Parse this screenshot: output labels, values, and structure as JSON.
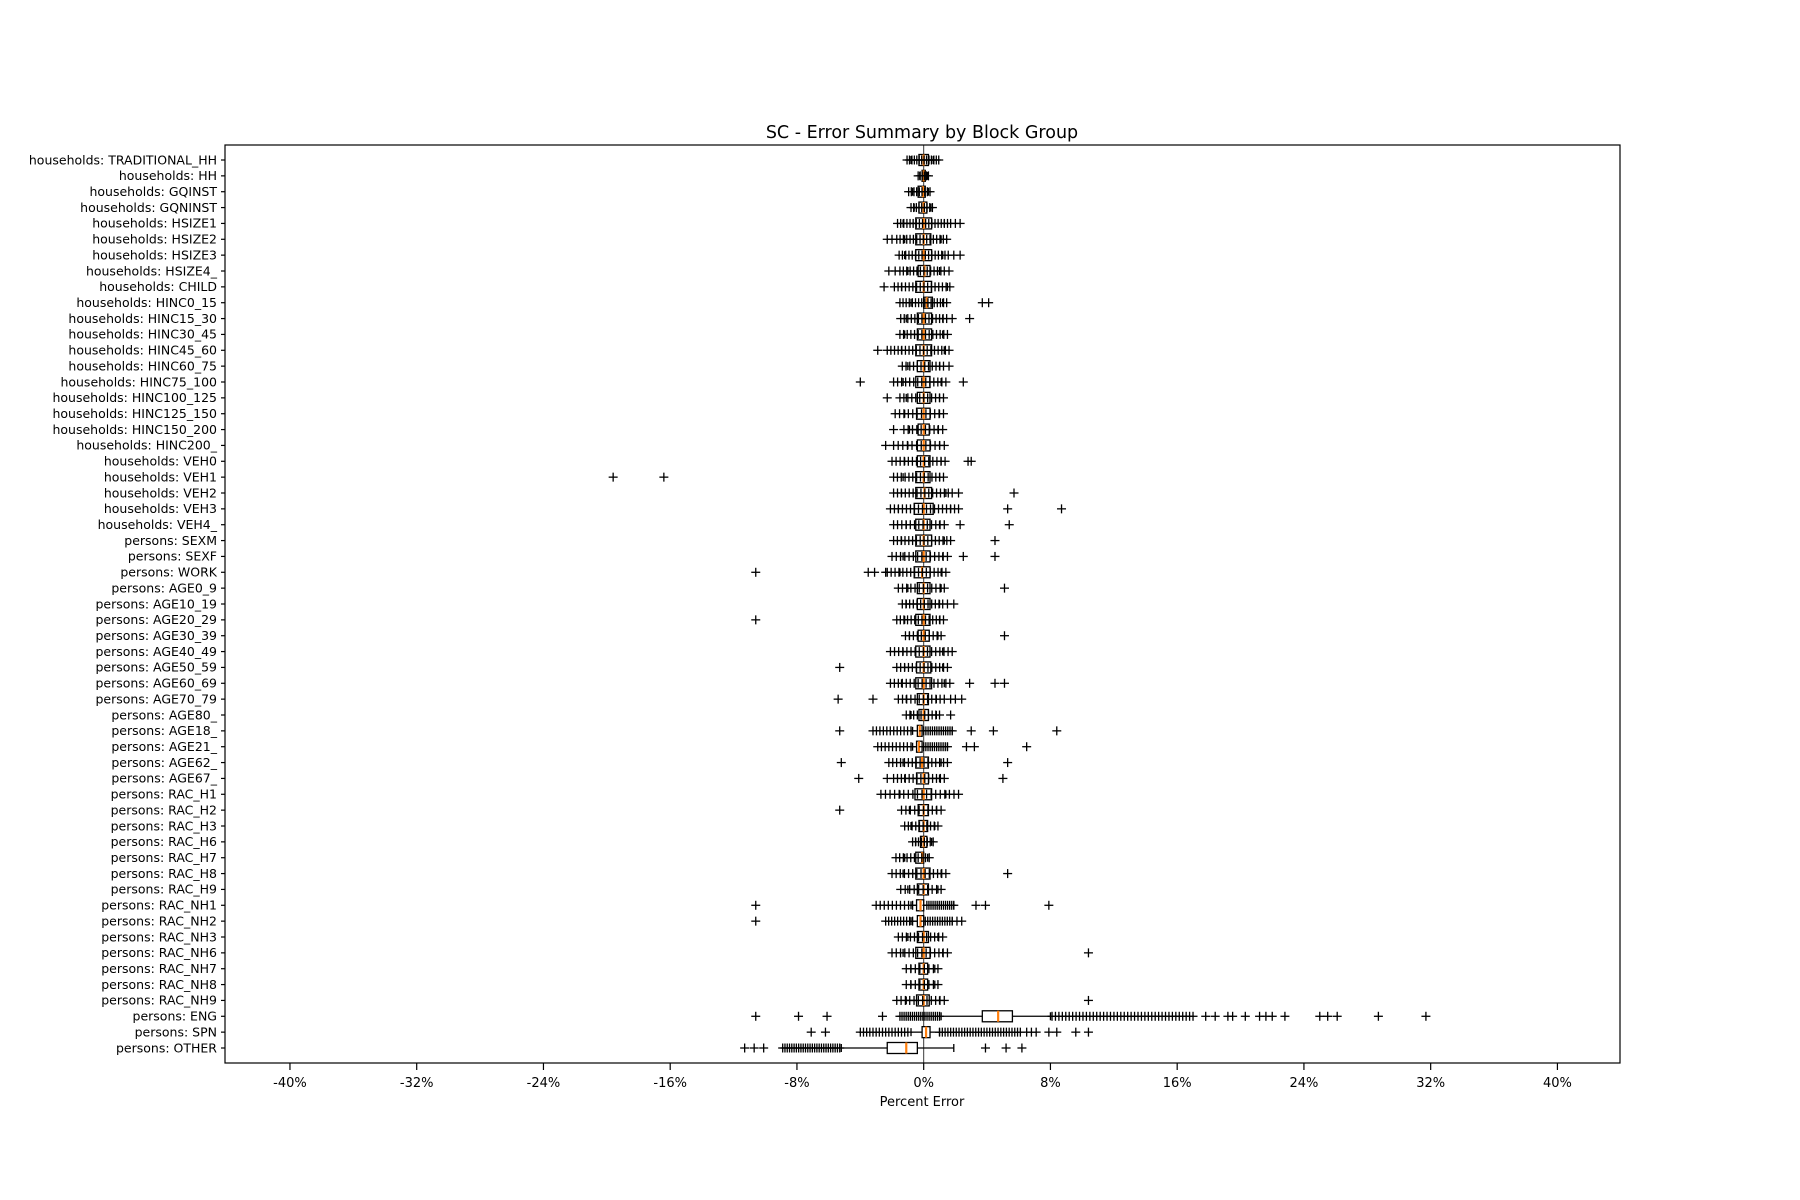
{
  "chart_data": {
    "type": "boxplot-horizontal",
    "title": "SC - Error Summary by Block Group",
    "xlabel": "Percent Error",
    "x_ticks": [
      -40,
      -32,
      -24,
      -16,
      -8,
      0,
      8,
      16,
      24,
      32,
      40
    ],
    "x_tick_labels": [
      "-40%",
      "-32%",
      "-24%",
      "-16%",
      "-8%",
      "0%",
      "8%",
      "16%",
      "24%",
      "32%",
      "40%"
    ],
    "xlim": [
      -44.1,
      43.95
    ],
    "grid": false,
    "zero_line": true,
    "colors": {
      "box": "#000000",
      "median": "#ff7f0e",
      "flier": "#000000",
      "spine": "#000000",
      "zero_line": "#3a3a3a",
      "background": "#ffffff"
    },
    "rows": [
      {
        "label": "households: TRADITIONAL_HH",
        "wlo": -0.8,
        "q1": -0.3,
        "med": 0.0,
        "q3": 0.3,
        "whi": 0.6,
        "clusters": [
          [
            -1.05,
            0.95,
            14
          ]
        ],
        "fliers": []
      },
      {
        "label": "households: HH",
        "wlo": -0.25,
        "q1": -0.1,
        "med": 0.0,
        "q3": 0.1,
        "whi": 0.25,
        "clusters": [
          [
            -0.35,
            0.3,
            6
          ]
        ],
        "fliers": []
      },
      {
        "label": "households: GQINST",
        "wlo": -0.7,
        "q1": -0.35,
        "med": -0.05,
        "q3": 0.1,
        "whi": 0.3,
        "clusters": [
          [
            -0.95,
            0.4,
            9
          ]
        ],
        "fliers": []
      },
      {
        "label": "households: GQNINST",
        "wlo": -0.6,
        "q1": -0.3,
        "med": 0.0,
        "q3": 0.2,
        "whi": 0.45,
        "clusters": [
          [
            -0.8,
            0.55,
            9
          ]
        ],
        "fliers": []
      },
      {
        "label": "households: HSIZE1",
        "wlo": -1.3,
        "q1": -0.5,
        "med": 0.0,
        "q3": 0.5,
        "whi": 1.3,
        "clusters": [
          [
            -1.65,
            1.7,
            18
          ]
        ],
        "fliers": [
          2.0,
          2.3
        ]
      },
      {
        "label": "households: HSIZE2",
        "wlo": -1.2,
        "q1": -0.5,
        "med": 0.0,
        "q3": 0.45,
        "whi": 1.1,
        "clusters": [
          [
            -1.7,
            1.45,
            16
          ]
        ],
        "fliers": [
          -2.3,
          -2.0
        ]
      },
      {
        "label": "households: HSIZE3",
        "wlo": -1.2,
        "q1": -0.5,
        "med": 0.0,
        "q3": 0.5,
        "whi": 1.2,
        "clusters": [
          [
            -1.55,
            1.55,
            16
          ]
        ],
        "fliers": [
          1.9,
          2.3
        ]
      },
      {
        "label": "households: HSIZE4_",
        "wlo": -1.0,
        "q1": -0.35,
        "med": 0.05,
        "q3": 0.4,
        "whi": 1.0,
        "clusters": [
          [
            -1.5,
            1.3,
            14
          ]
        ],
        "fliers": [
          -2.2,
          -1.8,
          1.6
        ]
      },
      {
        "label": "households: CHILD",
        "wlo": -1.4,
        "q1": -0.5,
        "med": 0.0,
        "q3": 0.5,
        "whi": 1.5,
        "clusters": [
          [
            -1.85,
            1.65,
            16
          ]
        ],
        "fliers": [
          -2.5
        ]
      },
      {
        "label": "households: HINC0_15",
        "wlo": -0.8,
        "q1": 0.0,
        "med": 0.2,
        "q3": 0.55,
        "whi": 1.2,
        "clusters": [
          [
            -1.5,
            1.45,
            16
          ]
        ],
        "fliers": [
          3.7,
          4.1
        ]
      },
      {
        "label": "households: HINC15_30",
        "wlo": -1.1,
        "q1": -0.4,
        "med": 0.0,
        "q3": 0.5,
        "whi": 1.2,
        "clusters": [
          [
            -1.45,
            1.45,
            14
          ]
        ],
        "fliers": [
          1.8,
          2.9
        ]
      },
      {
        "label": "households: HINC30_45",
        "wlo": -1.2,
        "q1": -0.4,
        "med": 0.0,
        "q3": 0.5,
        "whi": 1.2,
        "clusters": [
          [
            -1.5,
            1.5,
            14
          ]
        ],
        "fliers": []
      },
      {
        "label": "households: HINC45_60",
        "wlo": -1.4,
        "q1": -0.5,
        "med": 0.0,
        "q3": 0.5,
        "whi": 1.3,
        "clusters": [
          [
            -2.3,
            1.6,
            18
          ]
        ],
        "fliers": [
          -2.9
        ]
      },
      {
        "label": "households: HINC60_75",
        "wlo": -1.0,
        "q1": -0.4,
        "med": 0.0,
        "q3": 0.4,
        "whi": 1.0,
        "clusters": [
          [
            -1.35,
            1.25,
            12
          ]
        ],
        "fliers": [
          1.6
        ]
      },
      {
        "label": "households: HINC75_100",
        "wlo": -1.3,
        "q1": -0.5,
        "med": 0.0,
        "q3": 0.4,
        "whi": 1.1,
        "clusters": [
          [
            -1.9,
            1.4,
            14
          ]
        ],
        "fliers": [
          -4.0,
          2.5
        ]
      },
      {
        "label": "households: HINC100_125",
        "wlo": -1.1,
        "q1": -0.4,
        "med": 0.0,
        "q3": 0.4,
        "whi": 1.0,
        "clusters": [
          [
            -1.5,
            1.25,
            12
          ]
        ],
        "fliers": [
          -2.3
        ]
      },
      {
        "label": "households: HINC125_150",
        "wlo": -1.2,
        "q1": -0.45,
        "med": 0.0,
        "q3": 0.4,
        "whi": 1.0,
        "clusters": [
          [
            -1.8,
            1.25,
            12
          ]
        ],
        "fliers": []
      },
      {
        "label": "households: HINC150_200",
        "wlo": -0.9,
        "q1": -0.35,
        "med": 0.0,
        "q3": 0.35,
        "whi": 0.9,
        "clusters": [
          [
            -1.25,
            1.2,
            10
          ]
        ],
        "fliers": [
          -1.9
        ]
      },
      {
        "label": "households: HINC200_",
        "wlo": -1.0,
        "q1": -0.4,
        "med": 0.0,
        "q3": 0.4,
        "whi": 1.0,
        "clusters": [
          [
            -1.9,
            1.3,
            12
          ]
        ],
        "fliers": [
          -2.4
        ]
      },
      {
        "label": "households: VEH0",
        "wlo": -1.2,
        "q1": -0.4,
        "med": 0.0,
        "q3": 0.4,
        "whi": 1.1,
        "clusters": [
          [
            -2.0,
            1.35,
            14
          ]
        ],
        "fliers": [
          2.8,
          3.0
        ]
      },
      {
        "label": "households: VEH1",
        "wlo": -1.3,
        "q1": -0.5,
        "med": 0.0,
        "q3": 0.4,
        "whi": 1.0,
        "clusters": [
          [
            -1.9,
            1.25,
            14
          ]
        ],
        "fliers": [
          -19.6,
          -16.4
        ]
      },
      {
        "label": "households: VEH2",
        "wlo": -1.4,
        "q1": -0.5,
        "med": 0.05,
        "q3": 0.5,
        "whi": 1.4,
        "clusters": [
          [
            -1.9,
            1.8,
            16
          ]
        ],
        "fliers": [
          2.2,
          5.7
        ]
      },
      {
        "label": "households: VEH3",
        "wlo": -1.6,
        "q1": -0.6,
        "med": 0.0,
        "q3": 0.6,
        "whi": 1.7,
        "clusters": [
          [
            -2.1,
            2.2,
            18
          ]
        ],
        "fliers": [
          5.3,
          8.7
        ]
      },
      {
        "label": "households: VEH4_",
        "wlo": -1.1,
        "q1": -0.5,
        "med": 0.0,
        "q3": 0.4,
        "whi": 1.0,
        "clusters": [
          [
            -1.65,
            1.3,
            12
          ]
        ],
        "fliers": [
          -1.9,
          2.3,
          5.4
        ]
      },
      {
        "label": "persons: SEXM",
        "wlo": -1.4,
        "q1": -0.5,
        "med": 0.0,
        "q3": 0.5,
        "whi": 1.3,
        "clusters": [
          [
            -1.9,
            1.7,
            16
          ]
        ],
        "fliers": [
          4.5
        ]
      },
      {
        "label": "persons: SEXF",
        "wlo": -1.3,
        "q1": -0.5,
        "med": 0.0,
        "q3": 0.4,
        "whi": 1.2,
        "clusters": [
          [
            -2.0,
            1.5,
            14
          ]
        ],
        "fliers": [
          2.5,
          4.5
        ]
      },
      {
        "label": "persons: WORK",
        "wlo": -1.5,
        "q1": -0.6,
        "med": -0.1,
        "q3": 0.4,
        "whi": 1.1,
        "clusters": [
          [
            -2.3,
            1.4,
            16
          ]
        ],
        "fliers": [
          -10.6,
          -3.5,
          -3.1,
          -2.4
        ]
      },
      {
        "label": "persons: AGE0_9",
        "wlo": -1.0,
        "q1": -0.4,
        "med": 0.0,
        "q3": 0.4,
        "whi": 1.1,
        "clusters": [
          [
            -1.6,
            1.3,
            12
          ]
        ],
        "fliers": [
          5.1
        ]
      },
      {
        "label": "persons: AGE10_19",
        "wlo": -1.1,
        "q1": -0.4,
        "med": 0.0,
        "q3": 0.4,
        "whi": 1.0,
        "clusters": [
          [
            -1.35,
            1.2,
            12
          ]
        ],
        "fliers": [
          1.5,
          1.9
        ]
      },
      {
        "label": "persons: AGE20_29",
        "wlo": -1.2,
        "q1": -0.5,
        "med": 0.0,
        "q3": 0.4,
        "whi": 1.0,
        "clusters": [
          [
            -1.7,
            1.25,
            14
          ]
        ],
        "fliers": [
          -10.6
        ]
      },
      {
        "label": "persons: AGE30_39",
        "wlo": -0.9,
        "q1": -0.35,
        "med": 0.0,
        "q3": 0.35,
        "whi": 0.9,
        "clusters": [
          [
            -1.15,
            1.1,
            10
          ]
        ],
        "fliers": [
          5.1
        ]
      },
      {
        "label": "persons: AGE40_49",
        "wlo": -1.3,
        "q1": -0.5,
        "med": 0.0,
        "q3": 0.4,
        "whi": 1.2,
        "clusters": [
          [
            -2.1,
            1.8,
            16
          ]
        ],
        "fliers": []
      },
      {
        "label": "persons: AGE50_59",
        "wlo": -1.2,
        "q1": -0.45,
        "med": 0.0,
        "q3": 0.45,
        "whi": 1.2,
        "clusters": [
          [
            -1.7,
            1.5,
            14
          ]
        ],
        "fliers": [
          -5.3
        ]
      },
      {
        "label": "persons: AGE60_69",
        "wlo": -1.4,
        "q1": -0.5,
        "med": 0.0,
        "q3": 0.5,
        "whi": 1.3,
        "clusters": [
          [
            -2.1,
            1.65,
            16
          ]
        ],
        "fliers": [
          2.9,
          4.5,
          5.1
        ]
      },
      {
        "label": "persons: AGE70_79",
        "wlo": -1.1,
        "q1": -0.4,
        "med": 0.0,
        "q3": 0.3,
        "whi": 0.8,
        "clusters": [
          [
            -1.6,
            1.3,
            12
          ]
        ],
        "fliers": [
          -5.4,
          -3.2,
          1.7,
          2.0,
          2.4
        ]
      },
      {
        "label": "persons: AGE80_",
        "wlo": -0.8,
        "q1": -0.3,
        "med": 0.0,
        "q3": 0.3,
        "whi": 0.8,
        "clusters": [
          [
            -1.1,
            1.0,
            10
          ]
        ],
        "fliers": [
          1.7
        ]
      },
      {
        "label": "persons: AGE18_",
        "wlo": -0.7,
        "q1": -0.4,
        "med": -0.25,
        "q3": -0.1,
        "whi": 1.8,
        "clusters": [
          [
            -3.2,
            -0.8,
            12
          ],
          [
            0.0,
            1.8,
            14
          ]
        ],
        "fliers": [
          -5.3,
          3.0,
          4.4,
          8.4
        ]
      },
      {
        "label": "persons: AGE21_",
        "wlo": -0.7,
        "q1": -0.45,
        "med": -0.3,
        "q3": -0.1,
        "whi": 1.5,
        "clusters": [
          [
            -2.9,
            -0.8,
            10
          ],
          [
            0.0,
            1.5,
            12
          ]
        ],
        "fliers": [
          2.7,
          3.2,
          6.5
        ]
      },
      {
        "label": "persons: AGE62_",
        "wlo": -1.3,
        "q1": -0.5,
        "med": -0.1,
        "q3": 0.3,
        "whi": 1.1,
        "clusters": [
          [
            -2.2,
            1.5,
            16
          ]
        ],
        "fliers": [
          -5.2,
          5.3
        ]
      },
      {
        "label": "persons: AGE67_",
        "wlo": -1.2,
        "q1": -0.45,
        "med": 0.0,
        "q3": 0.3,
        "whi": 1.0,
        "clusters": [
          [
            -1.9,
            1.3,
            14
          ]
        ],
        "fliers": [
          -4.1,
          -2.3,
          5.0
        ]
      },
      {
        "label": "persons: RAC_H1",
        "wlo": -1.5,
        "q1": -0.55,
        "med": 0.0,
        "q3": 0.5,
        "whi": 1.4,
        "clusters": [
          [
            -2.7,
            2.2,
            18
          ]
        ],
        "fliers": []
      },
      {
        "label": "persons: RAC_H2",
        "wlo": -0.9,
        "q1": -0.35,
        "med": 0.0,
        "q3": 0.3,
        "whi": 0.8,
        "clusters": [
          [
            -1.4,
            1.1,
            10
          ]
        ],
        "fliers": [
          -5.3
        ]
      },
      {
        "label": "persons: RAC_H3",
        "wlo": -0.8,
        "q1": -0.3,
        "med": 0.0,
        "q3": 0.25,
        "whi": 0.7,
        "clusters": [
          [
            -1.2,
            0.9,
            10
          ]
        ],
        "fliers": []
      },
      {
        "label": "persons: RAC_H6",
        "wlo": -0.5,
        "q1": -0.2,
        "med": 0.0,
        "q3": 0.2,
        "whi": 0.5,
        "clusters": [
          [
            -0.7,
            0.6,
            8
          ]
        ],
        "fliers": []
      },
      {
        "label": "persons: RAC_H7",
        "wlo": -1.2,
        "q1": -0.5,
        "med": -0.1,
        "q3": 0.0,
        "whi": 0.25,
        "clusters": [
          [
            -1.75,
            0.35,
            10
          ]
        ],
        "fliers": []
      },
      {
        "label": "persons: RAC_H8",
        "wlo": -1.3,
        "q1": -0.5,
        "med": 0.0,
        "q3": 0.4,
        "whi": 1.1,
        "clusters": [
          [
            -2.0,
            1.4,
            14
          ]
        ],
        "fliers": [
          5.3
        ]
      },
      {
        "label": "persons: RAC_H9",
        "wlo": -1.0,
        "q1": -0.4,
        "med": 0.0,
        "q3": 0.3,
        "whi": 0.9,
        "clusters": [
          [
            -1.45,
            1.1,
            10
          ]
        ],
        "fliers": []
      },
      {
        "label": "persons: RAC_NH1",
        "wlo": -0.8,
        "q1": -0.45,
        "med": -0.2,
        "q3": 0.0,
        "whi": 1.9,
        "clusters": [
          [
            -3.0,
            -0.7,
            10
          ],
          [
            0.2,
            1.9,
            14
          ]
        ],
        "fliers": [
          -10.6,
          3.3,
          3.9,
          7.9
        ]
      },
      {
        "label": "persons: RAC_NH2",
        "wlo": -0.8,
        "q1": -0.4,
        "med": -0.2,
        "q3": 0.0,
        "whi": 1.8,
        "clusters": [
          [
            -2.4,
            -0.7,
            10
          ],
          [
            0.1,
            1.8,
            12
          ]
        ],
        "fliers": [
          -10.6,
          2.1,
          2.4
        ]
      },
      {
        "label": "persons: RAC_NH3",
        "wlo": -1.0,
        "q1": -0.4,
        "med": 0.0,
        "q3": 0.3,
        "whi": 0.9,
        "clusters": [
          [
            -1.6,
            1.2,
            12
          ]
        ],
        "fliers": []
      },
      {
        "label": "persons: RAC_NH6",
        "wlo": -1.3,
        "q1": -0.5,
        "med": 0.0,
        "q3": 0.4,
        "whi": 1.2,
        "clusters": [
          [
            -2.0,
            1.5,
            14
          ]
        ],
        "fliers": [
          10.4
        ]
      },
      {
        "label": "persons: RAC_NH7",
        "wlo": -0.8,
        "q1": -0.3,
        "med": 0.0,
        "q3": 0.25,
        "whi": 0.7,
        "clusters": [
          [
            -1.1,
            0.9,
            8
          ]
        ],
        "fliers": []
      },
      {
        "label": "persons: RAC_NH8",
        "wlo": -0.8,
        "q1": -0.3,
        "med": 0.0,
        "q3": 0.25,
        "whi": 0.7,
        "clusters": [
          [
            -1.1,
            0.9,
            8
          ]
        ],
        "fliers": []
      },
      {
        "label": "persons: RAC_NH9",
        "wlo": -1.1,
        "q1": -0.45,
        "med": 0.0,
        "q3": 0.35,
        "whi": 1.0,
        "clusters": [
          [
            -1.7,
            1.3,
            12
          ]
        ],
        "fliers": [
          10.4
        ]
      },
      {
        "label": "persons: ENG",
        "wlo": 1.1,
        "q1": 3.7,
        "med": 4.7,
        "q3": 5.6,
        "whi": 8.0,
        "clusters": [
          [
            -1.5,
            1.0,
            20
          ],
          [
            8.1,
            17.0,
            42
          ]
        ],
        "fliers": [
          -10.6,
          -7.9,
          -6.1,
          -2.6,
          17.8,
          18.4,
          19.2,
          19.5,
          20.3,
          21.2,
          21.6,
          22.0,
          22.8,
          25.0,
          25.5,
          26.1,
          28.7,
          31.7
        ]
      },
      {
        "label": "persons: SPN",
        "wlo": -0.8,
        "q1": -0.1,
        "med": 0.15,
        "q3": 0.4,
        "whi": 1.0,
        "clusters": [
          [
            -4.0,
            -1.0,
            16
          ],
          [
            1.0,
            6.1,
            30
          ]
        ],
        "fliers": [
          -7.1,
          -6.2,
          6.5,
          6.8,
          7.1,
          7.9,
          8.4,
          9.6,
          10.4
        ]
      },
      {
        "label": "persons: OTHER",
        "wlo": -5.2,
        "q1": -2.3,
        "med": -1.1,
        "q3": -0.4,
        "whi": 1.9,
        "clusters": [
          [
            -8.9,
            -5.3,
            26
          ]
        ],
        "fliers": [
          -11.3,
          -10.7,
          -10.1,
          3.9,
          5.2,
          6.2
        ]
      }
    ]
  }
}
